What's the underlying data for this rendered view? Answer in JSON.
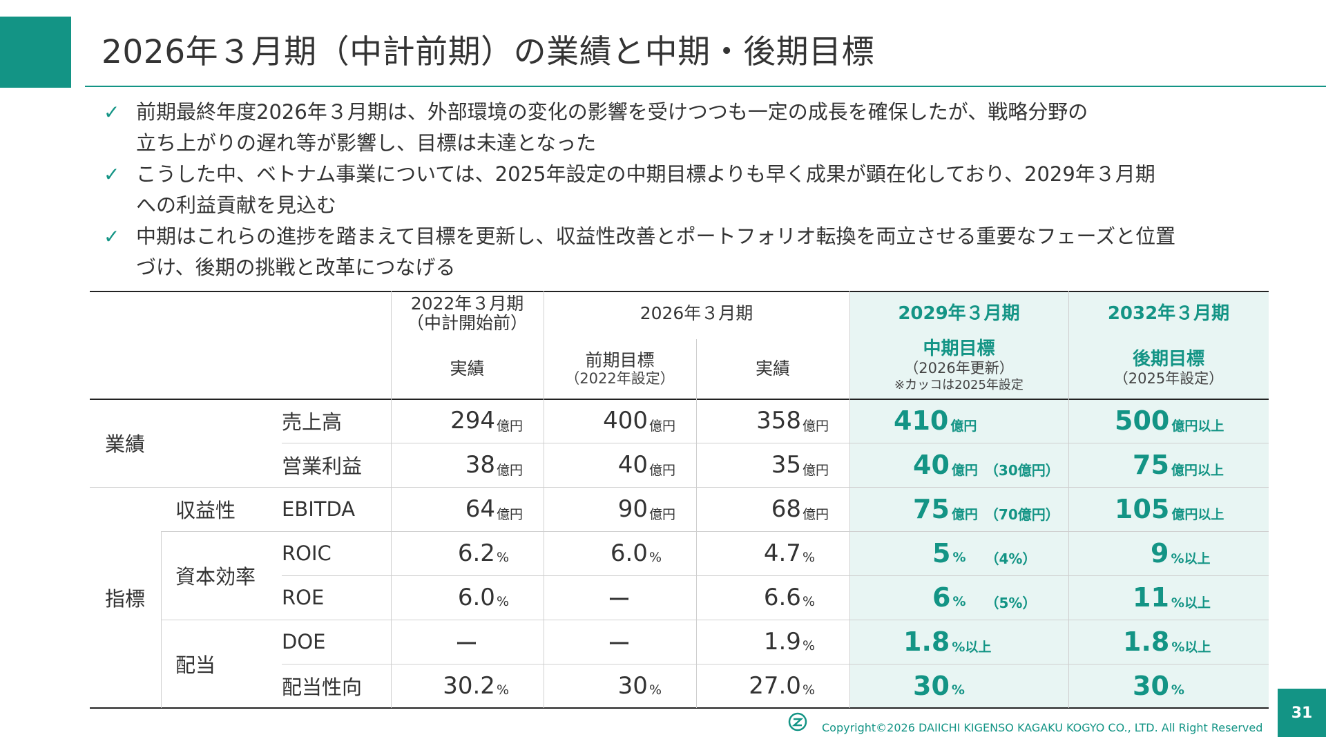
{
  "title": "2026年３月期（中計前期）の業績と中期・後期目標",
  "bullets": [
    {
      "line1": "前期最終年度2026年３月期は、外部環境の変化の影響を受けつつも一定の成長を確保したが、戦略分野の",
      "line2": "立ち上がりの遅れ等が影響し、目標は未達となった"
    },
    {
      "line1": "こうした中、ベトナム事業については、2025年設定の中期目標よりも早く成果が顕在化しており、2029年３月期",
      "line2": "への利益貢献を見込む"
    },
    {
      "line1": "中期はこれらの進捗を踏まえて目標を更新し、収益性改善とポートフォリオ転換を両立させる重要なフェーズと位置",
      "line2": "づけ、後期の挑戦と改革につなげる"
    }
  ],
  "check_icon": "✓",
  "table": {
    "headers": {
      "fy2022_l1": "2022年３月期",
      "fy2022_l2": "（中計開始前）",
      "fy2022_sub": "実績",
      "fy2026": "2026年３月期",
      "fy2026_plan_l1": "前期目標",
      "fy2026_plan_l2": "（2022年設定）",
      "fy2026_actual": "実績",
      "fy2029": "2029年３月期",
      "fy2029_sub_l1": "中期目標",
      "fy2029_sub_l2": "（2026年更新）",
      "fy2029_note": "※カッコは2025年設定",
      "fy2032": "2032年３月期",
      "fy2032_sub_l1": "後期目標",
      "fy2032_sub_l2": "（2025年設定）"
    },
    "groups": {
      "performance": "業績",
      "indicators": "指標",
      "profitability": "収益性",
      "capital_efficiency": "資本効率",
      "dividend": "配当"
    },
    "rows": [
      {
        "label": "売上高",
        "c1": "294",
        "c1u": "億円",
        "c2": "400",
        "c2u": "億円",
        "c3": "358",
        "c3u": "億円",
        "c4": "410",
        "c4u": "億円",
        "c4x": "",
        "c5": "500",
        "c5u": "億円以上"
      },
      {
        "label": "営業利益",
        "c1": "38",
        "c1u": "億円",
        "c2": "40",
        "c2u": "億円",
        "c3": "35",
        "c3u": "億円",
        "c4": "40",
        "c4u": "億円",
        "c4x": "（30億円）",
        "c5": "75",
        "c5u": "億円以上"
      },
      {
        "label": "EBITDA",
        "c1": "64",
        "c1u": "億円",
        "c2": "90",
        "c2u": "億円",
        "c3": "68",
        "c3u": "億円",
        "c4": "75",
        "c4u": "億円",
        "c4x": "（70億円）",
        "c5": "105",
        "c5u": "億円以上"
      },
      {
        "label": "ROIC",
        "c1": "6.2",
        "c1u": "%",
        "c2": "6.0",
        "c2u": "%",
        "c3": "4.7",
        "c3u": "%",
        "c4": "5",
        "c4u": "%",
        "c4x": "（4%）",
        "c5": "9",
        "c5u": "%以上"
      },
      {
        "label": "ROE",
        "c1": "6.0",
        "c1u": "%",
        "c2": "ー",
        "c2u": "",
        "c3": "6.6",
        "c3u": "%",
        "c4": "6",
        "c4u": "%",
        "c4x": "（5%）",
        "c5": "11",
        "c5u": "%以上"
      },
      {
        "label": "DOE",
        "c1": "ー",
        "c1u": "",
        "c2": "ー",
        "c2u": "",
        "c3": "1.9",
        "c3u": "%",
        "c4": "1.8",
        "c4u": "%以上",
        "c4x": "",
        "c5": "1.8",
        "c5u": "%以上"
      },
      {
        "label": "配当性向",
        "c1": "30.2",
        "c1u": "%",
        "c2": "30",
        "c2u": "%",
        "c3": "27.0",
        "c3u": "%",
        "c4": "30",
        "c4u": "%",
        "c4x": "",
        "c5": "30",
        "c5u": "%"
      }
    ]
  },
  "footer": {
    "copyright": "Copyright©2026 DAIICHI KIGENSO KAGAKU KOGYO CO., LTD. All Right Reserved",
    "page_number": "31"
  },
  "colors": {
    "accent": "#139485",
    "highlight_bg": "#e8f5f3"
  }
}
